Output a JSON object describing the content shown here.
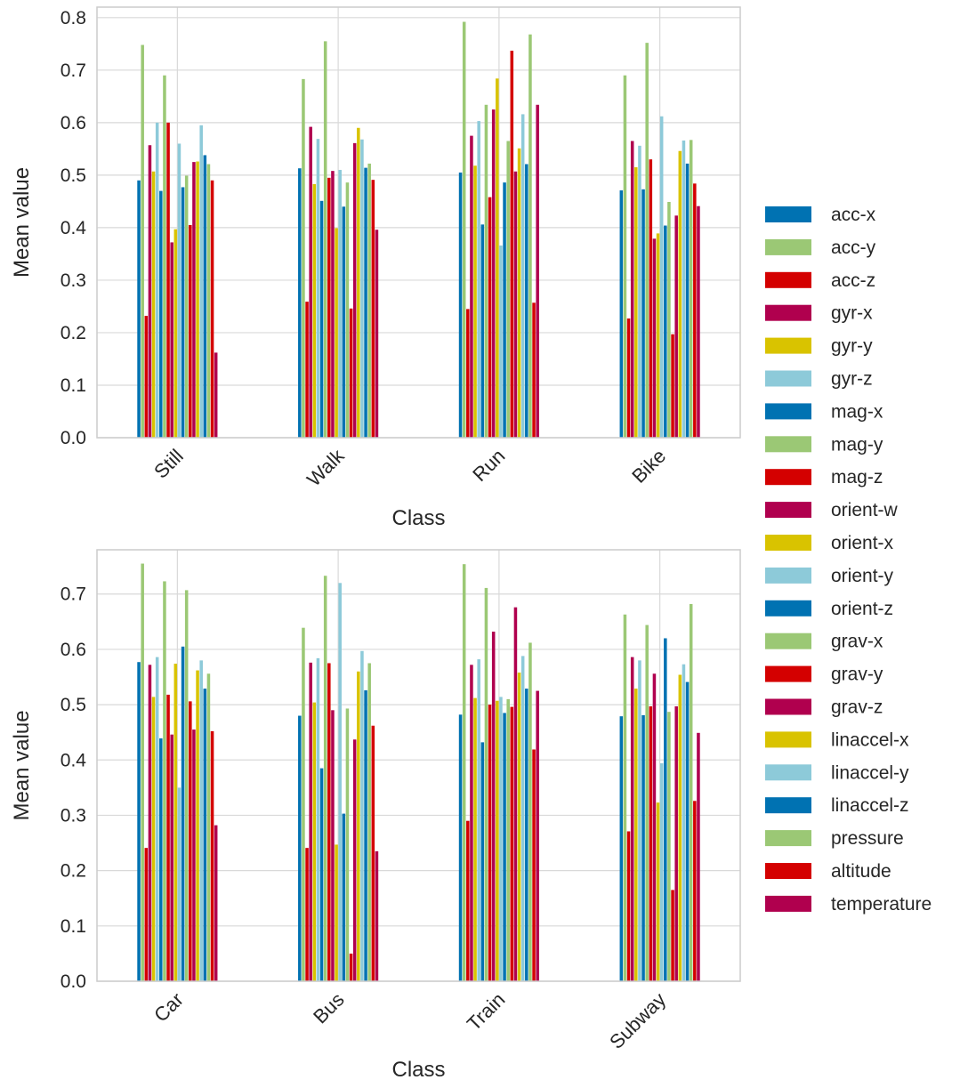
{
  "legend": {
    "placement": "right",
    "entries": [
      "acc-x",
      "acc-y",
      "acc-z",
      "gyr-x",
      "gyr-y",
      "gyr-z",
      "mag-x",
      "mag-y",
      "mag-z",
      "orient-w",
      "orient-x",
      "orient-y",
      "orient-z",
      "grav-x",
      "grav-y",
      "grav-z",
      "linaccel-x",
      "linaccel-y",
      "linaccel-z",
      "pressure",
      "altitude",
      "temperature"
    ],
    "colors": [
      "#0072B2",
      "#9BC875",
      "#D40000",
      "#B0004E",
      "#D9C300",
      "#8DCAD9",
      "#0072B2",
      "#9BC875",
      "#D40000",
      "#B0004E",
      "#D9C300",
      "#8DCAD9",
      "#0072B2",
      "#9BC875",
      "#D40000",
      "#B0004E",
      "#D9C300",
      "#8DCAD9",
      "#0072B2",
      "#9BC875",
      "#D40000",
      "#B0004E"
    ]
  },
  "chart_data": [
    {
      "type": "bar",
      "xlabel": "Class",
      "ylabel": "Mean value",
      "ylim": [
        0,
        0.82
      ],
      "yticks": [
        "0.0",
        "0.1",
        "0.2",
        "0.3",
        "0.4",
        "0.5",
        "0.6",
        "0.7",
        "0.8"
      ],
      "grid": true,
      "categories": [
        "Still",
        "Walk",
        "Run",
        "Bike"
      ],
      "series": [
        {
          "name": "acc-x",
          "values": [
            0.49,
            0.513,
            0.505,
            0.471
          ]
        },
        {
          "name": "acc-y",
          "values": [
            0.748,
            0.683,
            0.792,
            0.69
          ]
        },
        {
          "name": "acc-z",
          "values": [
            0.232,
            0.259,
            0.245,
            0.227
          ]
        },
        {
          "name": "gyr-x",
          "values": [
            0.557,
            0.592,
            0.575,
            0.565
          ]
        },
        {
          "name": "gyr-y",
          "values": [
            0.507,
            0.483,
            0.518,
            0.515
          ]
        },
        {
          "name": "gyr-z",
          "values": [
            0.6,
            0.569,
            0.603,
            0.556
          ]
        },
        {
          "name": "mag-x",
          "values": [
            0.47,
            0.451,
            0.406,
            0.473
          ]
        },
        {
          "name": "mag-y",
          "values": [
            0.69,
            0.755,
            0.634,
            0.752
          ]
        },
        {
          "name": "mag-z",
          "values": [
            0.6,
            0.495,
            0.458,
            0.53
          ]
        },
        {
          "name": "orient-w",
          "values": [
            0.372,
            0.508,
            0.625,
            0.379
          ]
        },
        {
          "name": "orient-x",
          "values": [
            0.397,
            0.399,
            0.684,
            0.389
          ]
        },
        {
          "name": "orient-y",
          "values": [
            0.56,
            0.51,
            0.366,
            0.612
          ]
        },
        {
          "name": "orient-z",
          "values": [
            0.477,
            0.44,
            0.486,
            0.404
          ]
        },
        {
          "name": "grav-x",
          "values": [
            0.499,
            0.486,
            0.565,
            0.449
          ]
        },
        {
          "name": "grav-y",
          "values": [
            0.405,
            0.246,
            0.737,
            0.197
          ]
        },
        {
          "name": "grav-z",
          "values": [
            0.525,
            0.561,
            0.507,
            0.423
          ]
        },
        {
          "name": "linaccel-x",
          "values": [
            0.526,
            0.59,
            0.551,
            0.546
          ]
        },
        {
          "name": "linaccel-y",
          "values": [
            0.595,
            0.568,
            0.616,
            0.566
          ]
        },
        {
          "name": "linaccel-z",
          "values": [
            0.538,
            0.514,
            0.521,
            0.522
          ]
        },
        {
          "name": "pressure",
          "values": [
            0.521,
            0.522,
            0.768,
            0.567
          ]
        },
        {
          "name": "altitude",
          "values": [
            0.49,
            0.491,
            0.257,
            0.484
          ]
        },
        {
          "name": "temperature",
          "values": [
            0.162,
            0.396,
            0.634,
            0.441
          ]
        }
      ]
    },
    {
      "type": "bar",
      "xlabel": "Class",
      "ylabel": "Mean value",
      "ylim": [
        0,
        0.78
      ],
      "yticks": [
        "0.0",
        "0.1",
        "0.2",
        "0.3",
        "0.4",
        "0.5",
        "0.6",
        "0.7"
      ],
      "grid": true,
      "categories": [
        "Car",
        "Bus",
        "Train",
        "Subway"
      ],
      "series": [
        {
          "name": "acc-x",
          "values": [
            0.577,
            0.48,
            0.482,
            0.479
          ]
        },
        {
          "name": "acc-y",
          "values": [
            0.755,
            0.639,
            0.754,
            0.663
          ]
        },
        {
          "name": "acc-z",
          "values": [
            0.241,
            0.241,
            0.29,
            0.271
          ]
        },
        {
          "name": "gyr-x",
          "values": [
            0.572,
            0.576,
            0.572,
            0.586
          ]
        },
        {
          "name": "gyr-y",
          "values": [
            0.514,
            0.504,
            0.512,
            0.529
          ]
        },
        {
          "name": "gyr-z",
          "values": [
            0.586,
            0.584,
            0.582,
            0.58
          ]
        },
        {
          "name": "mag-x",
          "values": [
            0.439,
            0.385,
            0.432,
            0.481
          ]
        },
        {
          "name": "mag-y",
          "values": [
            0.723,
            0.733,
            0.711,
            0.644
          ]
        },
        {
          "name": "mag-z",
          "values": [
            0.518,
            0.575,
            0.5,
            0.497
          ]
        },
        {
          "name": "orient-w",
          "values": [
            0.446,
            0.49,
            0.632,
            0.556
          ]
        },
        {
          "name": "orient-x",
          "values": [
            0.574,
            0.247,
            0.507,
            0.323
          ]
        },
        {
          "name": "orient-y",
          "values": [
            0.35,
            0.72,
            0.514,
            0.394
          ]
        },
        {
          "name": "orient-z",
          "values": [
            0.605,
            0.303,
            0.485,
            0.62
          ]
        },
        {
          "name": "grav-x",
          "values": [
            0.707,
            0.493,
            0.51,
            0.487
          ]
        },
        {
          "name": "grav-y",
          "values": [
            0.506,
            0.05,
            0.496,
            0.165
          ]
        },
        {
          "name": "grav-z",
          "values": [
            0.455,
            0.437,
            0.676,
            0.497
          ]
        },
        {
          "name": "linaccel-x",
          "values": [
            0.562,
            0.56,
            0.558,
            0.554
          ]
        },
        {
          "name": "linaccel-y",
          "values": [
            0.58,
            0.597,
            0.588,
            0.573
          ]
        },
        {
          "name": "linaccel-z",
          "values": [
            0.529,
            0.526,
            0.529,
            0.541
          ]
        },
        {
          "name": "pressure",
          "values": [
            0.556,
            0.575,
            0.612,
            0.682
          ]
        },
        {
          "name": "altitude",
          "values": [
            0.452,
            0.462,
            0.419,
            0.326
          ]
        },
        {
          "name": "temperature",
          "values": [
            0.282,
            0.235,
            0.525,
            0.449
          ]
        }
      ]
    }
  ]
}
